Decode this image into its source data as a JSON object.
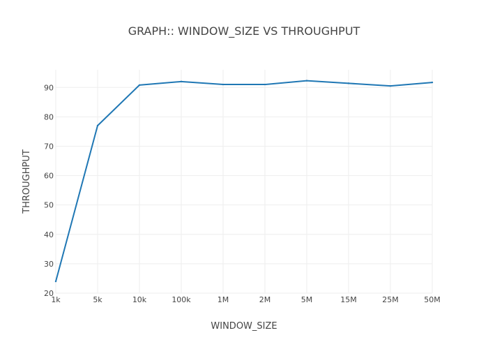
{
  "chart_data": {
    "type": "line",
    "title": "GRAPH:: WINDOW_SIZE VS THROUGHPUT",
    "xlabel": "WINDOW_SIZE",
    "ylabel": "THROUGHPUT",
    "categories": [
      "1k",
      "5k",
      "10k",
      "100k",
      "1M",
      "2M",
      "5M",
      "15M",
      "25M",
      "50M"
    ],
    "series": [
      {
        "values": [
          24,
          77,
          90.8,
          92,
          91,
          91,
          92.3,
          91.4,
          90.5,
          91.7
        ]
      }
    ],
    "ylim": [
      20,
      96
    ],
    "yticks": [
      20,
      30,
      40,
      50,
      60,
      70,
      80,
      90
    ],
    "grid": true,
    "line_color": "#1f77b4",
    "grid_color": "#eeeeee"
  }
}
